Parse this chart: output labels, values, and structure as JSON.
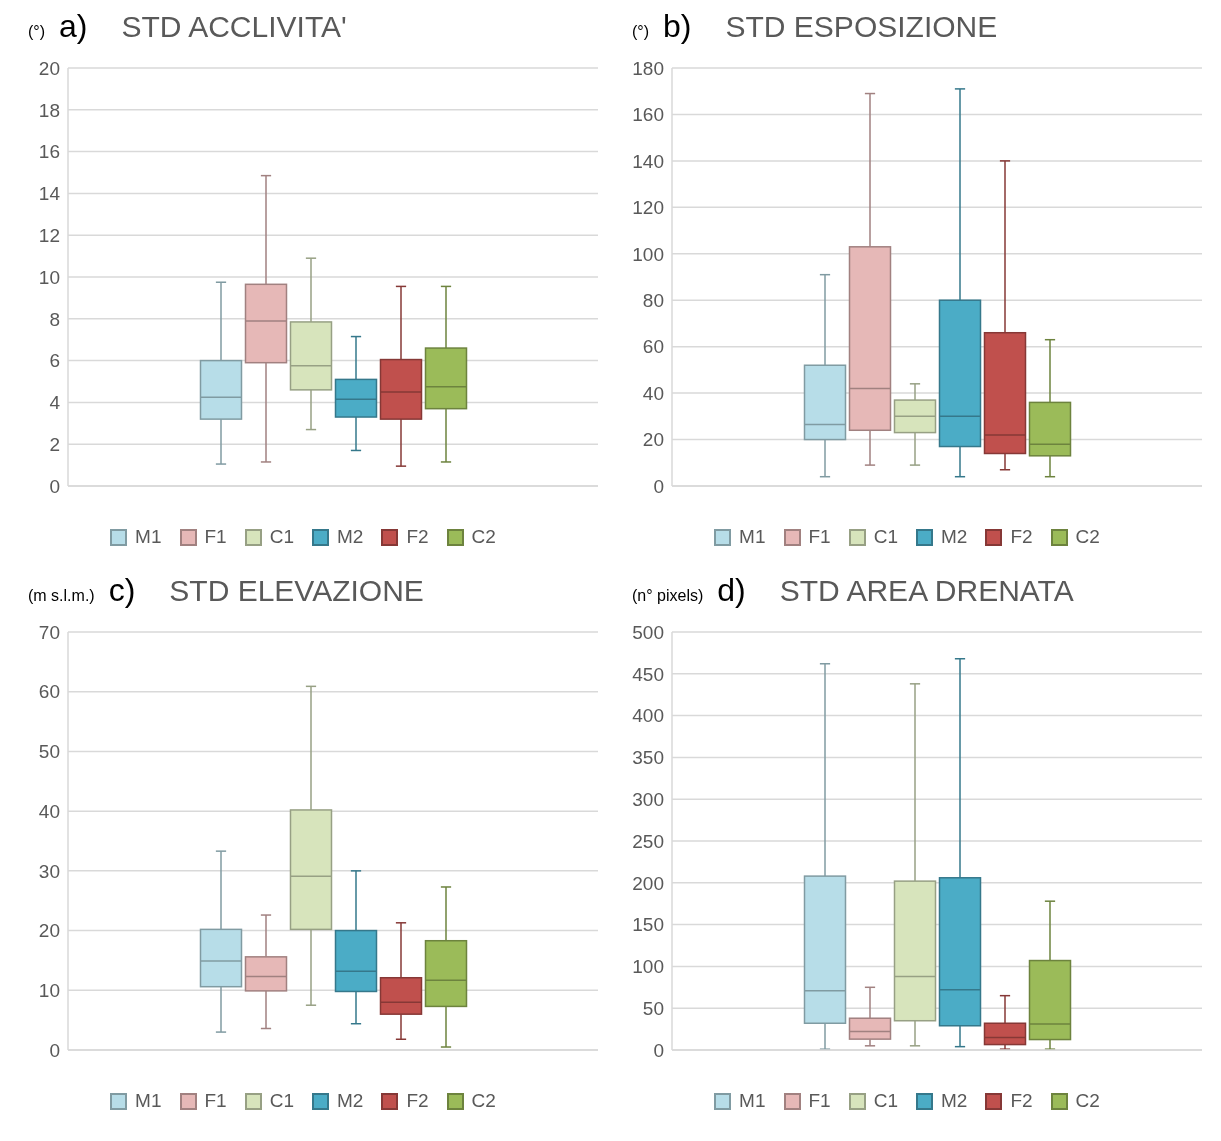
{
  "chart_data": [
    {
      "type": "box",
      "title": "STD ACCLIVITA'",
      "ylabel": "(°)",
      "annotations": [
        "a)"
      ],
      "categories": [
        null
      ],
      "ylim": [
        0,
        20
      ],
      "yticks": [
        0,
        2,
        4,
        6,
        8,
        10,
        12,
        14,
        16,
        18,
        20
      ],
      "grid": "y",
      "legend": "bottom",
      "series": [
        {
          "name": "M1",
          "color": "#b7dde8",
          "boxes": [
            {
              "low": 1.05,
              "q1": 3.2,
              "median": 4.25,
              "q3": 6.0,
              "high": 9.75
            }
          ]
        },
        {
          "name": "F1",
          "color": "#e6b8b7",
          "boxes": [
            {
              "low": 1.15,
              "q1": 5.9,
              "median": 7.9,
              "q3": 9.65,
              "high": 14.85
            }
          ]
        },
        {
          "name": "C1",
          "color": "#d7e4bc",
          "boxes": [
            {
              "low": 2.7,
              "q1": 4.6,
              "median": 5.75,
              "q3": 7.85,
              "high": 10.9
            }
          ]
        },
        {
          "name": "M2",
          "color": "#4bacc6",
          "boxes": [
            {
              "low": 1.7,
              "q1": 3.3,
              "median": 4.15,
              "q3": 5.1,
              "high": 7.15
            }
          ]
        },
        {
          "name": "F2",
          "color": "#c0504d",
          "boxes": [
            {
              "low": 0.95,
              "q1": 3.2,
              "median": 4.5,
              "q3": 6.05,
              "high": 9.55
            }
          ]
        },
        {
          "name": "C2",
          "color": "#9bbb59",
          "boxes": [
            {
              "low": 1.15,
              "q1": 3.7,
              "median": 4.75,
              "q3": 6.6,
              "high": 9.55
            }
          ]
        }
      ]
    },
    {
      "type": "box",
      "title": "STD ESPOSIZIONE",
      "ylabel": "(°)",
      "annotations": [
        "b)"
      ],
      "categories": [
        null
      ],
      "ylim": [
        0,
        180
      ],
      "yticks": [
        0,
        20,
        40,
        60,
        80,
        100,
        120,
        140,
        160,
        180
      ],
      "grid": "y",
      "legend": "bottom",
      "series": [
        {
          "name": "M1",
          "color": "#b7dde8",
          "boxes": [
            {
              "low": 4,
              "q1": 20,
              "median": 26.5,
              "q3": 52,
              "high": 91
            }
          ]
        },
        {
          "name": "F1",
          "color": "#e6b8b7",
          "boxes": [
            {
              "low": 9,
              "q1": 24,
              "median": 42,
              "q3": 103,
              "high": 169
            }
          ]
        },
        {
          "name": "C1",
          "color": "#d7e4bc",
          "boxes": [
            {
              "low": 9,
              "q1": 23,
              "median": 30,
              "q3": 37,
              "high": 44
            }
          ]
        },
        {
          "name": "M2",
          "color": "#4bacc6",
          "boxes": [
            {
              "low": 4,
              "q1": 17,
              "median": 30,
              "q3": 80,
              "high": 171
            }
          ]
        },
        {
          "name": "F2",
          "color": "#c0504d",
          "boxes": [
            {
              "low": 7,
              "q1": 14,
              "median": 22,
              "q3": 66,
              "high": 140
            }
          ]
        },
        {
          "name": "C2",
          "color": "#9bbb59",
          "boxes": [
            {
              "low": 4,
              "q1": 13,
              "median": 18,
              "q3": 36,
              "high": 63
            }
          ]
        }
      ]
    },
    {
      "type": "box",
      "title": "STD ELEVAZIONE",
      "ylabel": "(m s.l.m.)",
      "annotations": [
        "c)"
      ],
      "categories": [
        null
      ],
      "ylim": [
        0,
        70
      ],
      "yticks": [
        0,
        10,
        20,
        30,
        40,
        50,
        60,
        70
      ],
      "grid": "y",
      "legend": "bottom",
      "series": [
        {
          "name": "M1",
          "color": "#b7dde8",
          "boxes": [
            {
              "low": 3.0,
              "q1": 10.6,
              "median": 14.9,
              "q3": 20.2,
              "high": 33.3
            }
          ]
        },
        {
          "name": "F1",
          "color": "#e6b8b7",
          "boxes": [
            {
              "low": 3.6,
              "q1": 9.9,
              "median": 12.3,
              "q3": 15.6,
              "high": 22.6
            }
          ]
        },
        {
          "name": "C1",
          "color": "#d7e4bc",
          "boxes": [
            {
              "low": 7.5,
              "q1": 20.2,
              "median": 29.1,
              "q3": 40.2,
              "high": 60.9
            }
          ]
        },
        {
          "name": "M2",
          "color": "#4bacc6",
          "boxes": [
            {
              "low": 4.4,
              "q1": 9.8,
              "median": 13.2,
              "q3": 20,
              "high": 30
            }
          ]
        },
        {
          "name": "F2",
          "color": "#c0504d",
          "boxes": [
            {
              "low": 1.8,
              "q1": 6.0,
              "median": 8.0,
              "q3": 12.1,
              "high": 21.3
            }
          ]
        },
        {
          "name": "C2",
          "color": "#9bbb59",
          "boxes": [
            {
              "low": 0.5,
              "q1": 7.3,
              "median": 11.7,
              "q3": 18.3,
              "high": 27.3
            }
          ]
        }
      ]
    },
    {
      "type": "box",
      "title": "STD AREA DRENATA",
      "ylabel": "(n° pixels)",
      "annotations": [
        "d)"
      ],
      "categories": [
        null
      ],
      "ylim": [
        0,
        500
      ],
      "yticks": [
        0,
        50,
        100,
        150,
        200,
        250,
        300,
        350,
        400,
        450,
        500
      ],
      "grid": "y",
      "legend": "bottom",
      "series": [
        {
          "name": "M1",
          "color": "#b7dde8",
          "boxes": [
            {
              "low": 1,
              "q1": 32,
              "median": 71,
              "q3": 208,
              "high": 462
            }
          ]
        },
        {
          "name": "F1",
          "color": "#e6b8b7",
          "boxes": [
            {
              "low": 5,
              "q1": 13,
              "median": 22,
              "q3": 38,
              "high": 75
            }
          ]
        },
        {
          "name": "C1",
          "color": "#d7e4bc",
          "boxes": [
            {
              "low": 5,
              "q1": 35,
              "median": 88,
              "q3": 202,
              "high": 438
            }
          ]
        },
        {
          "name": "M2",
          "color": "#4bacc6",
          "boxes": [
            {
              "low": 4,
              "q1": 29,
              "median": 72,
              "q3": 206,
              "high": 468
            }
          ]
        },
        {
          "name": "F2",
          "color": "#c0504d",
          "boxes": [
            {
              "low": 1,
              "q1": 6.5,
              "median": 15,
              "q3": 32,
              "high": 65
            }
          ]
        },
        {
          "name": "C2",
          "color": "#9bbb59",
          "boxes": [
            {
              "low": 1,
              "q1": 12.5,
              "median": 31,
              "q3": 107,
              "high": 178
            }
          ]
        }
      ]
    }
  ]
}
